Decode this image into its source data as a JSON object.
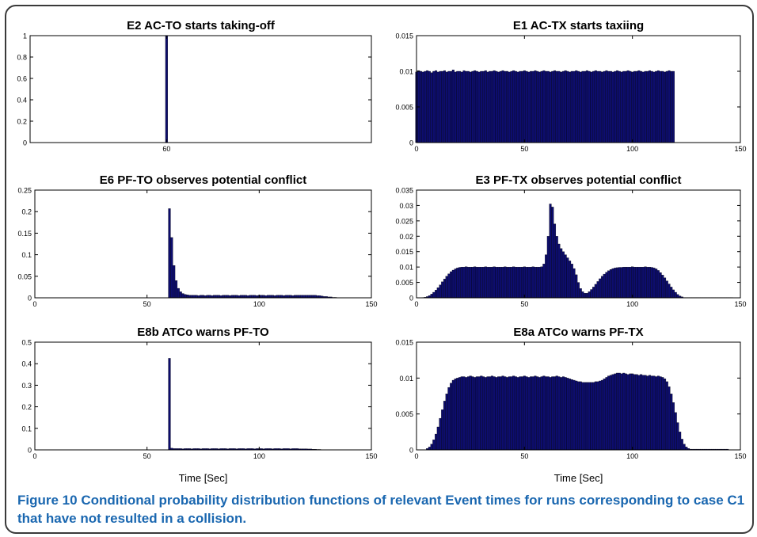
{
  "caption": {
    "label": "Figure 10",
    "text": "Conditional probability distribution functions of relevant Event times for runs corresponding to case C1 that have not resulted in a collision."
  },
  "colors": {
    "bar": "#0d0d6e",
    "edge": "#000000",
    "axis": "#000000"
  },
  "chart_data": [
    {
      "type": "bar",
      "title": "E2 AC-TO starts taking-off",
      "xlabel": "",
      "ylabel": "",
      "xlim": [
        0,
        150
      ],
      "ylim": [
        0,
        1
      ],
      "xticks": [
        "60"
      ],
      "xtick_values": [
        60
      ],
      "yticks": [
        "0",
        "0.2",
        "0.4",
        "0.6",
        "0.8",
        "1"
      ],
      "ytick_values": [
        0,
        0.2,
        0.4,
        0.6,
        0.8,
        1
      ],
      "x": [
        60
      ],
      "values": [
        1.0
      ],
      "grid": false
    },
    {
      "type": "bar",
      "title": "E1 AC-TX starts taxiing",
      "xlabel": "",
      "ylabel": "",
      "xlim": [
        0,
        150
      ],
      "ylim": [
        0,
        0.015
      ],
      "xticks": [
        "0",
        "50",
        "100",
        "150"
      ],
      "xtick_values": [
        0,
        50,
        100,
        150
      ],
      "yticks": [
        "0",
        "0.005",
        "0.01",
        "0.015"
      ],
      "ytick_values": [
        0,
        0.005,
        0.01,
        0.015
      ],
      "x": [
        0,
        1,
        2,
        3,
        4,
        5,
        6,
        7,
        8,
        9,
        10,
        11,
        12,
        13,
        14,
        15,
        16,
        17,
        18,
        19,
        20,
        21,
        22,
        23,
        24,
        25,
        26,
        27,
        28,
        29,
        30,
        31,
        32,
        33,
        34,
        35,
        36,
        37,
        38,
        39,
        40,
        41,
        42,
        43,
        44,
        45,
        46,
        47,
        48,
        49,
        50,
        51,
        52,
        53,
        54,
        55,
        56,
        57,
        58,
        59,
        60,
        61,
        62,
        63,
        64,
        65,
        66,
        67,
        68,
        69,
        70,
        71,
        72,
        73,
        74,
        75,
        76,
        77,
        78,
        79,
        80,
        81,
        82,
        83,
        84,
        85,
        86,
        87,
        88,
        89,
        90,
        91,
        92,
        93,
        94,
        95,
        96,
        97,
        98,
        99,
        100,
        101,
        102,
        103,
        104,
        105,
        106,
        107,
        108,
        109,
        110,
        111,
        112,
        113,
        114,
        115,
        116,
        117,
        118,
        119
      ],
      "values": [
        0.0099,
        0.0101,
        0.01,
        0.0099,
        0.01,
        0.0101,
        0.01,
        0.0098,
        0.01,
        0.0101,
        0.0099,
        0.01,
        0.01,
        0.0101,
        0.0099,
        0.01,
        0.01,
        0.0102,
        0.0099,
        0.01,
        0.01,
        0.0099,
        0.0101,
        0.01,
        0.01,
        0.0099,
        0.01,
        0.0101,
        0.01,
        0.0099,
        0.01,
        0.01,
        0.0101,
        0.0099,
        0.01,
        0.01,
        0.0101,
        0.01,
        0.0099,
        0.01,
        0.0101,
        0.01,
        0.01,
        0.0099,
        0.01,
        0.0101,
        0.01,
        0.0099,
        0.01,
        0.01,
        0.0101,
        0.01,
        0.0099,
        0.01,
        0.01,
        0.0101,
        0.01,
        0.0099,
        0.01,
        0.0101,
        0.01,
        0.01,
        0.0099,
        0.01,
        0.0101,
        0.01,
        0.01,
        0.0099,
        0.01,
        0.0101,
        0.01,
        0.0099,
        0.01,
        0.01,
        0.0101,
        0.01,
        0.0099,
        0.01,
        0.01,
        0.0101,
        0.01,
        0.0099,
        0.01,
        0.0101,
        0.01,
        0.01,
        0.0099,
        0.01,
        0.0101,
        0.01,
        0.01,
        0.0099,
        0.01,
        0.0101,
        0.01,
        0.0099,
        0.01,
        0.01,
        0.0101,
        0.01,
        0.0099,
        0.01,
        0.01,
        0.0101,
        0.01,
        0.0099,
        0.01,
        0.01,
        0.0101,
        0.01,
        0.0099,
        0.01,
        0.0101,
        0.01,
        0.01,
        0.0099,
        0.01,
        0.0101,
        0.01,
        0.01
      ],
      "grid": false
    },
    {
      "type": "bar",
      "title": "E6 PF-TO observes potential conflict",
      "xlabel": "",
      "ylabel": "",
      "xlim": [
        0,
        150
      ],
      "ylim": [
        0,
        0.25
      ],
      "xticks": [
        "0",
        "50",
        "100",
        "150"
      ],
      "xtick_values": [
        0,
        50,
        100,
        150
      ],
      "yticks": [
        "0",
        "0.05",
        "0.1",
        "0.15",
        "0.2",
        "0.25"
      ],
      "ytick_values": [
        0,
        0.05,
        0.1,
        0.15,
        0.2,
        0.25
      ],
      "x": [
        60,
        61,
        62,
        63,
        64,
        65,
        66,
        67,
        68,
        69,
        70,
        71,
        72,
        73,
        74,
        75,
        76,
        77,
        78,
        79,
        80,
        81,
        82,
        83,
        84,
        85,
        86,
        87,
        88,
        89,
        90,
        91,
        92,
        93,
        94,
        95,
        96,
        97,
        98,
        99,
        100,
        101,
        102,
        103,
        104,
        105,
        106,
        107,
        108,
        109,
        110,
        111,
        112,
        113,
        114,
        115,
        116,
        117,
        118,
        119,
        120,
        121,
        122,
        123,
        124,
        125,
        126,
        127,
        128,
        129,
        130,
        131,
        132,
        133,
        134,
        135,
        136
      ],
      "values": [
        0.207,
        0.14,
        0.075,
        0.04,
        0.022,
        0.014,
        0.01,
        0.008,
        0.007,
        0.006,
        0.006,
        0.006,
        0.006,
        0.005,
        0.006,
        0.006,
        0.005,
        0.006,
        0.006,
        0.005,
        0.006,
        0.006,
        0.006,
        0.005,
        0.006,
        0.006,
        0.006,
        0.005,
        0.006,
        0.006,
        0.006,
        0.005,
        0.006,
        0.006,
        0.006,
        0.005,
        0.006,
        0.006,
        0.006,
        0.005,
        0.006,
        0.006,
        0.006,
        0.005,
        0.006,
        0.006,
        0.006,
        0.005,
        0.006,
        0.006,
        0.006,
        0.005,
        0.006,
        0.006,
        0.006,
        0.005,
        0.006,
        0.006,
        0.006,
        0.006,
        0.006,
        0.006,
        0.006,
        0.006,
        0.006,
        0.006,
        0.005,
        0.005,
        0.004,
        0.003,
        0.003,
        0.002,
        0.002,
        0.001,
        0.001,
        0.0005,
        0.0003
      ],
      "grid": false
    },
    {
      "type": "bar",
      "title": "E3 PF-TX observes potential conflict",
      "xlabel": "",
      "ylabel": "",
      "xlim": [
        0,
        150
      ],
      "ylim": [
        0,
        0.035
      ],
      "xticks": [
        "0",
        "50",
        "100",
        "150"
      ],
      "xtick_values": [
        0,
        50,
        100,
        150
      ],
      "yticks": [
        "0",
        "0.005",
        "0.01",
        "0.015",
        "0.02",
        "0.025",
        "0.03",
        "0.035"
      ],
      "ytick_values": [
        0,
        0.005,
        0.01,
        0.015,
        0.02,
        0.025,
        0.03,
        0.035
      ],
      "x": [
        3,
        4,
        5,
        6,
        7,
        8,
        9,
        10,
        11,
        12,
        13,
        14,
        15,
        16,
        17,
        18,
        19,
        20,
        21,
        22,
        23,
        24,
        25,
        26,
        27,
        28,
        29,
        30,
        31,
        32,
        33,
        34,
        35,
        36,
        37,
        38,
        39,
        40,
        41,
        42,
        43,
        44,
        45,
        46,
        47,
        48,
        49,
        50,
        51,
        52,
        53,
        54,
        55,
        56,
        57,
        58,
        59,
        60,
        61,
        62,
        63,
        64,
        65,
        66,
        67,
        68,
        69,
        70,
        71,
        72,
        73,
        74,
        75,
        76,
        77,
        78,
        79,
        80,
        81,
        82,
        83,
        84,
        85,
        86,
        87,
        88,
        89,
        90,
        91,
        92,
        93,
        94,
        95,
        96,
        97,
        98,
        99,
        100,
        101,
        102,
        103,
        104,
        105,
        106,
        107,
        108,
        109,
        110,
        111,
        112,
        113,
        114,
        115,
        116,
        117,
        118,
        119,
        120,
        121,
        122,
        123,
        124,
        125,
        126,
        127,
        128,
        129,
        130,
        131,
        132,
        133,
        134,
        135,
        136,
        137,
        138,
        139,
        140,
        141,
        142,
        143,
        144,
        145,
        146
      ],
      "values": [
        0.0001,
        0.0002,
        0.0004,
        0.0007,
        0.0012,
        0.0018,
        0.0025,
        0.0033,
        0.0042,
        0.0052,
        0.0061,
        0.007,
        0.0078,
        0.0085,
        0.009,
        0.0094,
        0.0097,
        0.0099,
        0.01,
        0.01,
        0.0101,
        0.01,
        0.01,
        0.01,
        0.0101,
        0.01,
        0.01,
        0.01,
        0.01,
        0.0101,
        0.01,
        0.01,
        0.01,
        0.0101,
        0.01,
        0.01,
        0.01,
        0.01,
        0.0101,
        0.01,
        0.01,
        0.01,
        0.0101,
        0.01,
        0.01,
        0.01,
        0.01,
        0.0101,
        0.01,
        0.01,
        0.01,
        0.0101,
        0.01,
        0.01,
        0.01,
        0.0101,
        0.011,
        0.014,
        0.02,
        0.0305,
        0.0295,
        0.024,
        0.02,
        0.0175,
        0.016,
        0.015,
        0.014,
        0.013,
        0.012,
        0.011,
        0.0095,
        0.0075,
        0.005,
        0.003,
        0.002,
        0.0015,
        0.0015,
        0.002,
        0.0027,
        0.0035,
        0.0044,
        0.0053,
        0.0062,
        0.007,
        0.0077,
        0.0083,
        0.0088,
        0.0092,
        0.0095,
        0.0097,
        0.0098,
        0.0099,
        0.0099,
        0.01,
        0.01,
        0.01,
        0.01,
        0.0101,
        0.01,
        0.01,
        0.01,
        0.01,
        0.01,
        0.0101,
        0.01,
        0.01,
        0.0099,
        0.0097,
        0.0094,
        0.0089,
        0.0082,
        0.0074,
        0.0065,
        0.0055,
        0.0045,
        0.0035,
        0.0026,
        0.0018,
        0.0011,
        0.0006,
        0.0003,
        0.0001,
        0.0001,
        0.0001,
        0.0001,
        0.0001,
        0.0001,
        0.0001,
        0.0001,
        0.0001,
        0.0001,
        0.0001,
        0.0001,
        0.0001,
        0.0001,
        0.0001,
        0.0001,
        0.0001,
        0.0001,
        0.0001,
        0.0001,
        0.0001,
        0.0001,
        0.0001
      ],
      "grid": false
    },
    {
      "type": "bar",
      "title": "E8b ATCo warns PF-TO",
      "xlabel": "Time [Sec]",
      "ylabel": "",
      "xlim": [
        0,
        150
      ],
      "ylim": [
        0,
        0.5
      ],
      "xticks": [
        "0",
        "50",
        "100",
        "150"
      ],
      "xtick_values": [
        0,
        50,
        100,
        150
      ],
      "yticks": [
        "0",
        "0.1",
        "0.2",
        "0.3",
        "0.4",
        "0.5"
      ],
      "ytick_values": [
        0,
        0.1,
        0.2,
        0.3,
        0.4,
        0.5
      ],
      "x": [
        60,
        61,
        62,
        63,
        64,
        65,
        66,
        67,
        68,
        69,
        70,
        71,
        72,
        73,
        74,
        75,
        76,
        77,
        78,
        79,
        80,
        81,
        82,
        83,
        84,
        85,
        86,
        87,
        88,
        89,
        90,
        91,
        92,
        93,
        94,
        95,
        96,
        97,
        98,
        99,
        100,
        101,
        102,
        103,
        104,
        105,
        106,
        107,
        108,
        109,
        110,
        111,
        112,
        113,
        114,
        115,
        116,
        117,
        118,
        119,
        120,
        121,
        122,
        123,
        124,
        125,
        126,
        127,
        128,
        129,
        130,
        131,
        132
      ],
      "values": [
        0.425,
        0.008,
        0.006,
        0.006,
        0.006,
        0.006,
        0.005,
        0.006,
        0.006,
        0.006,
        0.005,
        0.006,
        0.006,
        0.006,
        0.005,
        0.006,
        0.006,
        0.006,
        0.005,
        0.006,
        0.006,
        0.006,
        0.005,
        0.006,
        0.006,
        0.006,
        0.005,
        0.006,
        0.006,
        0.006,
        0.005,
        0.006,
        0.006,
        0.006,
        0.005,
        0.006,
        0.006,
        0.006,
        0.005,
        0.006,
        0.006,
        0.006,
        0.005,
        0.006,
        0.006,
        0.006,
        0.005,
        0.006,
        0.006,
        0.006,
        0.005,
        0.006,
        0.006,
        0.006,
        0.005,
        0.006,
        0.006,
        0.006,
        0.005,
        0.005,
        0.005,
        0.005,
        0.004,
        0.004,
        0.003,
        0.003,
        0.002,
        0.002,
        0.001,
        0.001,
        0.001,
        0.0005,
        0.0003
      ],
      "grid": false
    },
    {
      "type": "bar",
      "title": "E8a ATCo warns PF-TX",
      "xlabel": "Time [Sec]",
      "ylabel": "",
      "xlim": [
        0,
        150
      ],
      "ylim": [
        0,
        0.015
      ],
      "xticks": [
        "0",
        "50",
        "100",
        "150"
      ],
      "xtick_values": [
        0,
        50,
        100,
        150
      ],
      "yticks": [
        "0",
        "0.005",
        "0.01",
        "0.015"
      ],
      "ytick_values": [
        0,
        0.005,
        0.01,
        0.015
      ],
      "x": [
        5,
        6,
        7,
        8,
        9,
        10,
        11,
        12,
        13,
        14,
        15,
        16,
        17,
        18,
        19,
        20,
        21,
        22,
        23,
        24,
        25,
        26,
        27,
        28,
        29,
        30,
        31,
        32,
        33,
        34,
        35,
        36,
        37,
        38,
        39,
        40,
        41,
        42,
        43,
        44,
        45,
        46,
        47,
        48,
        49,
        50,
        51,
        52,
        53,
        54,
        55,
        56,
        57,
        58,
        59,
        60,
        61,
        62,
        63,
        64,
        65,
        66,
        67,
        68,
        69,
        70,
        71,
        72,
        73,
        74,
        75,
        76,
        77,
        78,
        79,
        80,
        81,
        82,
        83,
        84,
        85,
        86,
        87,
        88,
        89,
        90,
        91,
        92,
        93,
        94,
        95,
        96,
        97,
        98,
        99,
        100,
        101,
        102,
        103,
        104,
        105,
        106,
        107,
        108,
        109,
        110,
        111,
        112,
        113,
        114,
        115,
        116,
        117,
        118,
        119,
        120,
        121,
        122,
        123,
        124,
        125,
        126,
        127,
        128,
        129,
        130,
        131,
        132,
        133,
        134,
        135,
        136,
        137,
        138,
        139,
        140,
        141,
        142,
        143,
        144
      ],
      "values": [
        0.0002,
        0.0004,
        0.0008,
        0.0014,
        0.0022,
        0.0032,
        0.0044,
        0.0056,
        0.0068,
        0.0078,
        0.0087,
        0.0093,
        0.0097,
        0.0099,
        0.01,
        0.0101,
        0.0102,
        0.0102,
        0.0101,
        0.0102,
        0.0103,
        0.0102,
        0.0101,
        0.0102,
        0.0102,
        0.0103,
        0.0102,
        0.0101,
        0.0102,
        0.0102,
        0.0103,
        0.0102,
        0.0101,
        0.0102,
        0.0102,
        0.0103,
        0.0102,
        0.0101,
        0.0102,
        0.0102,
        0.0103,
        0.0102,
        0.0101,
        0.0102,
        0.0102,
        0.0103,
        0.0102,
        0.0101,
        0.0102,
        0.0102,
        0.0103,
        0.0102,
        0.0101,
        0.0102,
        0.0103,
        0.0102,
        0.0102,
        0.0101,
        0.0102,
        0.0102,
        0.0103,
        0.0102,
        0.0101,
        0.0102,
        0.0101,
        0.01,
        0.0099,
        0.0098,
        0.0097,
        0.0096,
        0.0095,
        0.0095,
        0.0094,
        0.0094,
        0.0094,
        0.0094,
        0.0094,
        0.0094,
        0.0095,
        0.0095,
        0.0096,
        0.0097,
        0.0099,
        0.0101,
        0.0103,
        0.0104,
        0.0105,
        0.0106,
        0.0107,
        0.0107,
        0.0106,
        0.0107,
        0.0106,
        0.0105,
        0.0106,
        0.0106,
        0.0105,
        0.0105,
        0.0104,
        0.0105,
        0.0104,
        0.0104,
        0.0103,
        0.0104,
        0.0103,
        0.0103,
        0.0102,
        0.0103,
        0.0102,
        0.0101,
        0.0099,
        0.0095,
        0.0088,
        0.0078,
        0.0066,
        0.0052,
        0.0038,
        0.0025,
        0.0015,
        0.0008,
        0.0004,
        0.0002,
        0.0001,
        0.0001,
        0.0001,
        0.0001,
        0.0001,
        0.0001,
        0.0001,
        0.0001,
        0.0001,
        0.0001,
        0.0001,
        0.0001,
        0.0001,
        0.0001,
        0.0001,
        0.0001,
        0.0001,
        0.0001
      ],
      "grid": false
    }
  ]
}
